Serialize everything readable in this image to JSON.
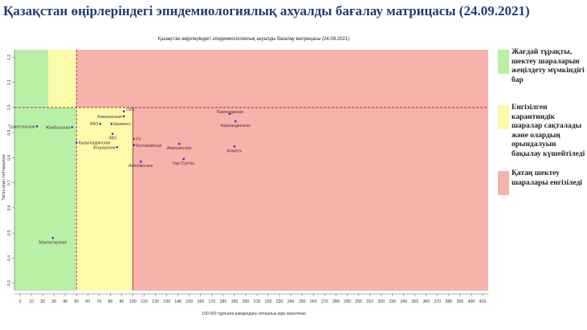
{
  "slide_title": "Қазақстан өңірлеріндегі эпидемиологиялық ахуалды бағалау матрицасы  (24.09.2021)",
  "legend": [
    {
      "color": "#b8f0a6",
      "text": "Жағдай тұрақты, шектеу шараларын жеңілдету мүмкіндігі бар"
    },
    {
      "color": "#fbfbaa",
      "text": "Енгізілген карантиндік шаралар сақталады және олардың орындалуын бақылау күшейтіледі"
    },
    {
      "color": "#f7b2ab",
      "text": "Қатаң шектеу шаралары енгізіледі"
    }
  ],
  "chart_data": {
    "type": "scatter",
    "title": "Қазақстан өңірлеріндегі эпидемиологиялық ахуалды бағалау матрицасы  (24.09.2021)",
    "xlabel": "100 000 тұрғынға шаққандағы аптаалық ауру көрсеткіші",
    "ylabel": "Төсек орын толтырылуы",
    "xlim": [
      -5,
      415
    ],
    "ylim": [
      0.27,
      1.23
    ],
    "x_ticks": [
      0,
      10,
      20,
      30,
      40,
      50,
      60,
      70,
      80,
      90,
      100,
      110,
      120,
      130,
      140,
      150,
      160,
      170,
      180,
      190,
      200,
      210,
      220,
      230,
      240,
      250,
      260,
      270,
      280,
      290,
      300,
      310,
      320,
      330,
      340,
      350,
      360,
      370,
      380,
      390,
      400,
      410
    ],
    "y_ticks": [
      0.3,
      0.4,
      0.5,
      0.6,
      0.7,
      0.8,
      0.9,
      1.0,
      1.1,
      1.2
    ],
    "zones": [
      {
        "x0": -5,
        "x1": 50,
        "y0": 0.27,
        "y1": 1.0,
        "color": "#b8f0a6"
      },
      {
        "x0": -5,
        "x1": 25,
        "y0": 1.0,
        "y1": 1.23,
        "color": "#b8f0a6"
      },
      {
        "x0": 25,
        "x1": 50,
        "y0": 1.0,
        "y1": 1.23,
        "color": "#fbfbaa"
      },
      {
        "x0": 50,
        "x1": 100,
        "y0": 0.27,
        "y1": 1.0,
        "color": "#fbfbaa"
      },
      {
        "x0": 50,
        "x1": 100,
        "y0": 1.0,
        "y1": 1.23,
        "color": "#f7b2ab"
      },
      {
        "x0": 100,
        "x1": 415,
        "y0": 0.27,
        "y1": 1.23,
        "color": "#f7b2ab"
      }
    ],
    "lines": [
      {
        "type": "v",
        "value": 50,
        "x_from": 50,
        "y_from": 0.27,
        "y_to": 1.23,
        "style": "dashed"
      },
      {
        "type": "v",
        "value": 100,
        "y_from": 0.27,
        "y_to": 1.0,
        "style": "solid"
      },
      {
        "type": "h",
        "value": 1.0,
        "style": "dashed"
      }
    ],
    "points": [
      {
        "name": "Туркестанская",
        "x": 15,
        "y": 0.925,
        "color": "#3a2ad6",
        "anchor": "end"
      },
      {
        "name": "Жамбылская",
        "x": 46,
        "y": 0.922,
        "color": "#3a2ad6",
        "anchor": "end"
      },
      {
        "name": "ВКО",
        "x": 71,
        "y": 0.935,
        "color": "#3a2ad6",
        "anchor": "end"
      },
      {
        "name": "Шымкент",
        "x": 81,
        "y": 0.935,
        "color": "#3a2ad6",
        "anchor": "start"
      },
      {
        "name": "Алматинская",
        "x": 92,
        "y": 0.965,
        "color": "#3a2ad6",
        "anchor": "end"
      },
      {
        "name": "СКО",
        "x": 92,
        "y": 0.985,
        "color": "#3a2ad6",
        "anchor": "start"
      },
      {
        "name": "ЗКО",
        "x": 82,
        "y": 0.895,
        "color": "#3a2ad6",
        "anchor": "middle"
      },
      {
        "name": "Кызылординская",
        "x": 50,
        "y": 0.86,
        "color": "#3a2ad6",
        "anchor": "start"
      },
      {
        "name": "Атырауская",
        "x": 86,
        "y": 0.842,
        "color": "#3a2ad6",
        "anchor": "end"
      },
      {
        "name": "РК",
        "x": 101,
        "y": 0.875,
        "color": "#e8302a",
        "anchor": "start"
      },
      {
        "name": "Костанайская",
        "x": 101,
        "y": 0.85,
        "color": "#3a2ad6",
        "anchor": "start"
      },
      {
        "name": "Актюбинская",
        "x": 107,
        "y": 0.785,
        "color": "#3a2ad6",
        "anchor": "middle"
      },
      {
        "name": "Акмолинская",
        "x": 141,
        "y": 0.855,
        "color": "#3a2ad6",
        "anchor": "middle"
      },
      {
        "name": "Нур-Султан",
        "x": 145,
        "y": 0.795,
        "color": "#3a2ad6",
        "anchor": "middle"
      },
      {
        "name": "Павлодарская",
        "x": 186,
        "y": 0.975,
        "color": "#3a2ad6",
        "anchor": "middle"
      },
      {
        "name": "Карагандинская",
        "x": 191,
        "y": 0.945,
        "color": "#3a2ad6",
        "anchor": "middle"
      },
      {
        "name": "Алматы",
        "x": 190,
        "y": 0.845,
        "color": "#3a2ad6",
        "anchor": "middle"
      },
      {
        "name": "Мангистауская",
        "x": 29,
        "y": 0.48,
        "color": "#3a2ad6",
        "anchor": "middle"
      }
    ]
  }
}
